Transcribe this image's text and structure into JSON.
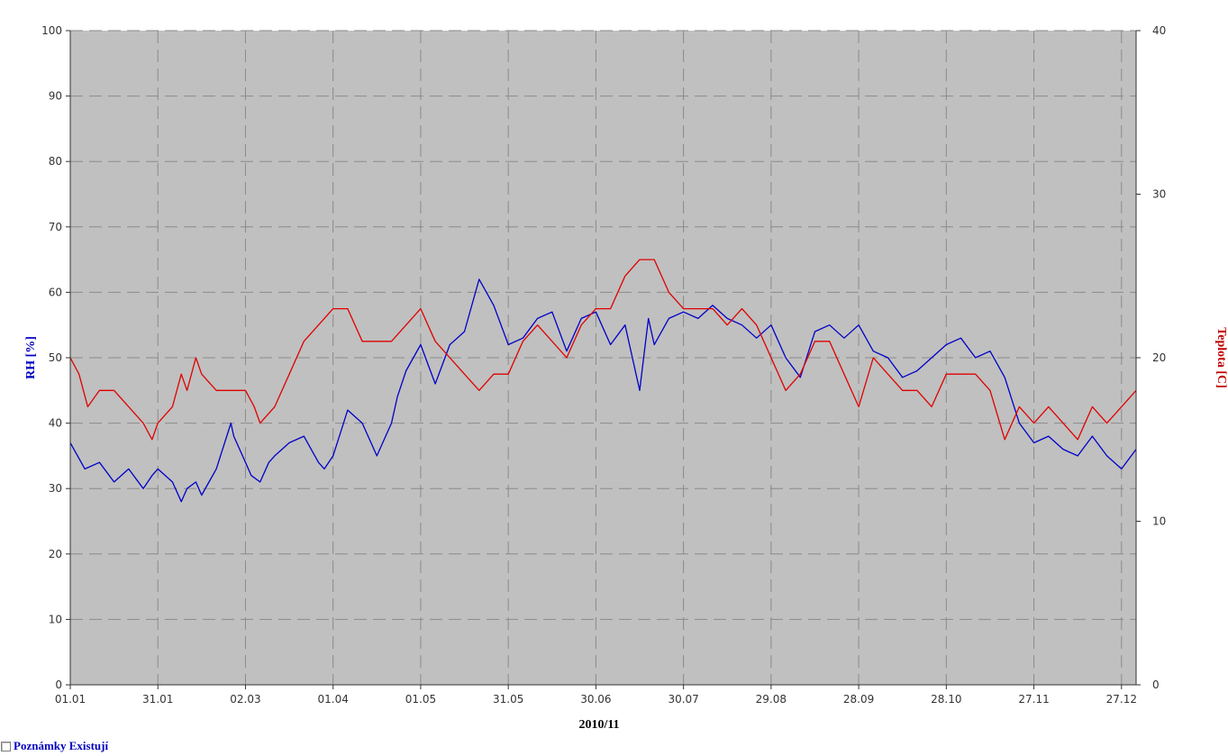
{
  "chart_data": {
    "type": "line",
    "xlabel": "2010/11",
    "ylabel_left": "RH [%]",
    "ylabel_right": "Teplota [C]",
    "x_tick_labels": [
      "01.01",
      "31.01",
      "02.03",
      "01.04",
      "01.05",
      "31.05",
      "30.06",
      "30.07",
      "29.08",
      "28.09",
      "28.10",
      "27.11",
      "27.12"
    ],
    "x_tick_day_offsets": [
      0,
      30,
      60,
      90,
      120,
      150,
      180,
      210,
      240,
      270,
      300,
      330,
      360
    ],
    "x_range_days": [
      0,
      365
    ],
    "ylim_left": [
      0,
      100
    ],
    "ylim_right": [
      0,
      40
    ],
    "yticks_left": [
      0,
      10,
      20,
      30,
      40,
      50,
      60,
      70,
      80,
      90,
      100
    ],
    "yticks_right": [
      0,
      10,
      20,
      30,
      40
    ],
    "grid": true,
    "plot_background": "#c0c0c0",
    "series": [
      {
        "name": "RH [%]",
        "axis": "left",
        "color": "#0000c8",
        "x": [
          0,
          5,
          10,
          15,
          20,
          25,
          28,
          30,
          35,
          38,
          40,
          43,
          45,
          50,
          55,
          56,
          60,
          62,
          65,
          68,
          70,
          75,
          80,
          85,
          87,
          90,
          95,
          100,
          105,
          110,
          112,
          115,
          120,
          125,
          130,
          135,
          140,
          145,
          150,
          155,
          160,
          165,
          170,
          175,
          180,
          185,
          190,
          195,
          198,
          200,
          205,
          210,
          215,
          220,
          225,
          230,
          235,
          240,
          245,
          250,
          255,
          260,
          265,
          270,
          275,
          280,
          285,
          290,
          295,
          300,
          305,
          310,
          315,
          320,
          325,
          330,
          335,
          340,
          345,
          350,
          355,
          360,
          365
        ],
        "values": [
          37,
          33,
          34,
          31,
          33,
          30,
          32,
          33,
          31,
          28,
          30,
          31,
          29,
          33,
          40,
          38,
          34,
          32,
          31,
          34,
          35,
          37,
          38,
          34,
          33,
          35,
          42,
          40,
          35,
          40,
          44,
          48,
          52,
          46,
          52,
          54,
          62,
          58,
          52,
          53,
          56,
          57,
          51,
          56,
          57,
          52,
          55,
          45,
          56,
          52,
          56,
          57,
          56,
          58,
          56,
          55,
          53,
          55,
          50,
          47,
          54,
          55,
          53,
          55,
          51,
          50,
          47,
          48,
          50,
          52,
          53,
          50,
          51,
          47,
          40,
          37,
          38,
          36,
          35,
          38,
          35,
          33,
          36
        ]
      },
      {
        "name": "Teplota [C]",
        "axis": "right",
        "color": "#e00000",
        "x": [
          0,
          3,
          6,
          10,
          15,
          20,
          25,
          28,
          30,
          35,
          38,
          40,
          43,
          45,
          50,
          55,
          60,
          63,
          65,
          70,
          75,
          80,
          85,
          90,
          95,
          100,
          105,
          110,
          115,
          120,
          125,
          130,
          135,
          140,
          145,
          150,
          155,
          160,
          165,
          170,
          175,
          180,
          185,
          190,
          195,
          200,
          205,
          210,
          215,
          220,
          225,
          230,
          235,
          240,
          245,
          250,
          255,
          260,
          265,
          270,
          275,
          280,
          285,
          290,
          295,
          300,
          305,
          310,
          315,
          320,
          325,
          330,
          335,
          340,
          345,
          350,
          355,
          360,
          365
        ],
        "values": [
          20,
          19,
          17,
          18,
          18,
          17,
          16,
          15,
          16,
          17,
          19,
          18,
          20,
          19,
          18,
          18,
          18,
          17,
          16,
          17,
          19,
          21,
          22,
          23,
          23,
          21,
          21,
          21,
          22,
          23,
          21,
          20,
          19,
          18,
          19,
          19,
          21,
          22,
          21,
          20,
          22,
          23,
          23,
          25,
          26,
          26,
          24,
          23,
          23,
          23,
          22,
          23,
          22,
          20,
          18,
          19,
          21,
          21,
          19,
          17,
          20,
          19,
          18,
          18,
          17,
          19,
          19,
          19,
          18,
          15,
          17,
          16,
          17,
          16,
          15,
          17,
          16,
          17,
          18
        ]
      }
    ]
  },
  "footer": {
    "notes_label": "Poznámky Existují"
  }
}
